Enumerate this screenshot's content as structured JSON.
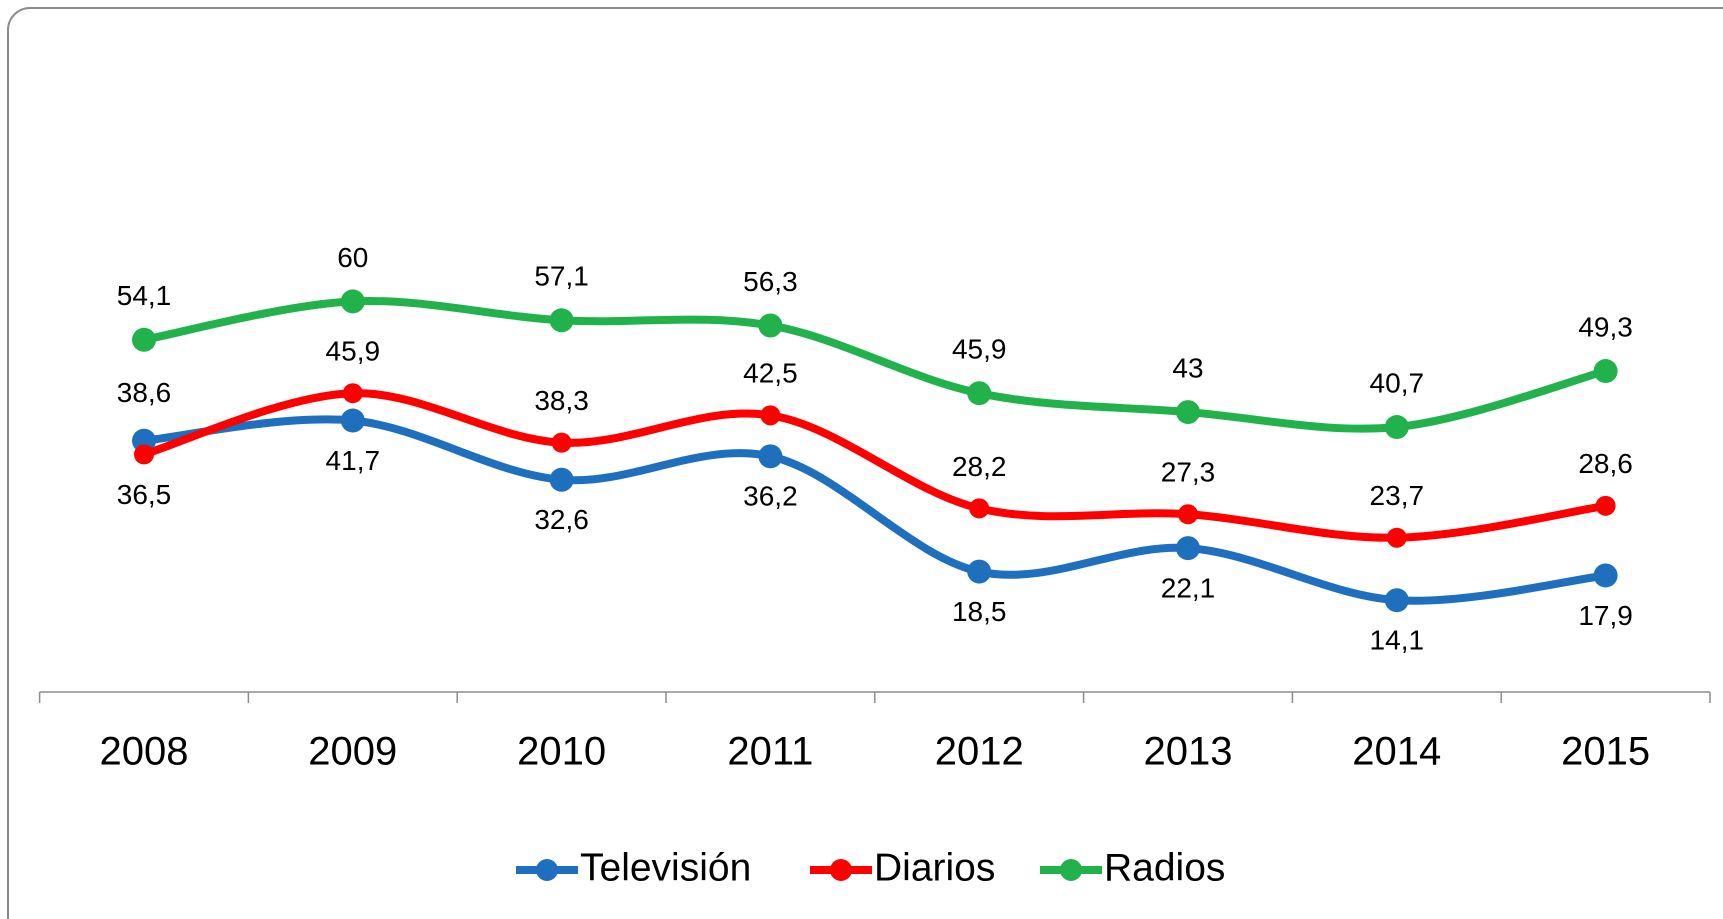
{
  "chart_data": {
    "type": "line",
    "categories": [
      "2008",
      "2009",
      "2010",
      "2011",
      "2012",
      "2013",
      "2014",
      "2015"
    ],
    "series": [
      {
        "name": "Televisión",
        "color": "#1f6fbf",
        "values": [
          38.6,
          41.7,
          32.6,
          36.2,
          18.5,
          22.1,
          14.1,
          17.9
        ],
        "value_labels": [
          "38,6",
          "41,7",
          "32,6",
          "36,2",
          "18,5",
          "22,1",
          "14,1",
          "17,9"
        ]
      },
      {
        "name": "Diarios",
        "color": "#ff0000",
        "values": [
          36.5,
          45.9,
          38.3,
          42.5,
          28.2,
          27.3,
          23.7,
          28.6
        ],
        "value_labels": [
          "36,5",
          "45,9",
          "38,3",
          "42,5",
          "28,2",
          "27,3",
          "23,7",
          "28,6"
        ]
      },
      {
        "name": "Radios",
        "color": "#22b24c",
        "values": [
          54.1,
          60,
          57.1,
          56.3,
          45.9,
          43,
          40.7,
          49.3
        ],
        "value_labels": [
          "54,1",
          "60",
          "57,1",
          "56,3",
          "45,9",
          "43",
          "40,7",
          "49,3"
        ]
      }
    ],
    "legend": "bottom"
  }
}
